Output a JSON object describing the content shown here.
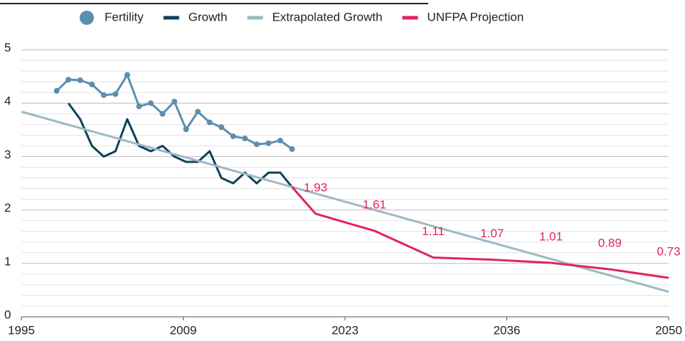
{
  "chart_data": {
    "type": "line",
    "xlim": [
      1995,
      2050
    ],
    "xticks": [
      1995,
      {
        "value": 2008.75,
        "label": "2009"
      },
      {
        "value": 2022.5,
        "label": "2023"
      },
      {
        "value": 2036.25,
        "label": "2036"
      },
      2050
    ],
    "ylim": [
      0,
      5
    ],
    "yticks": [
      0,
      1,
      2,
      3,
      4,
      5
    ],
    "yminorticks": [
      0.2,
      0.4,
      0.6,
      0.8,
      1.2,
      1.4,
      1.6,
      1.8,
      2.2,
      2.4,
      2.6,
      2.8,
      3.2,
      3.4,
      3.6,
      3.8,
      4.2,
      4.4,
      4.6,
      4.8
    ],
    "grid": true,
    "legend": "top",
    "series": [
      {
        "name": "Fertility",
        "color": "#5b8fad",
        "marker": "circle",
        "x": [
          1998,
          1999,
          2000,
          2001,
          2002,
          2003,
          2004,
          2005,
          2006,
          2007,
          2008,
          2009,
          2010,
          2011,
          2012,
          2013,
          2014,
          2015,
          2016,
          2017,
          2018
        ],
        "values": [
          4.23,
          4.44,
          4.43,
          4.35,
          4.15,
          4.17,
          4.53,
          3.94,
          4.0,
          3.8,
          4.03,
          3.51,
          3.84,
          3.64,
          3.55,
          3.38,
          3.34,
          3.23,
          3.25,
          3.3,
          3.14
        ]
      },
      {
        "name": "Growth",
        "color": "#0f4158",
        "x": [
          1999,
          2000,
          2001,
          2002,
          2003,
          2004,
          2005,
          2006,
          2007,
          2008,
          2009,
          2010,
          2011,
          2012,
          2013,
          2014,
          2015,
          2016,
          2017,
          2018
        ],
        "values": [
          4.0,
          3.7,
          3.2,
          3.0,
          3.1,
          3.7,
          3.2,
          3.1,
          3.2,
          3.0,
          2.9,
          2.9,
          3.1,
          2.6,
          2.5,
          2.7,
          2.5,
          2.7,
          2.7,
          2.43
        ]
      },
      {
        "name": "Extrapolated Growth",
        "color": "#9db8c4",
        "x": [
          1995,
          2050
        ],
        "values": [
          3.84,
          0.47
        ]
      },
      {
        "name": "UNFPA Projection",
        "color": "#e0245e",
        "x": [
          2018,
          2020,
          2025,
          2030,
          2035,
          2040,
          2045,
          2050
        ],
        "values": [
          2.43,
          1.93,
          1.61,
          1.11,
          1.07,
          1.01,
          0.89,
          0.73
        ],
        "value_labels": [
          null,
          "1.93",
          "1.61",
          "1.11",
          "1.07",
          "1.01",
          "0.89",
          "0.73"
        ]
      }
    ]
  }
}
